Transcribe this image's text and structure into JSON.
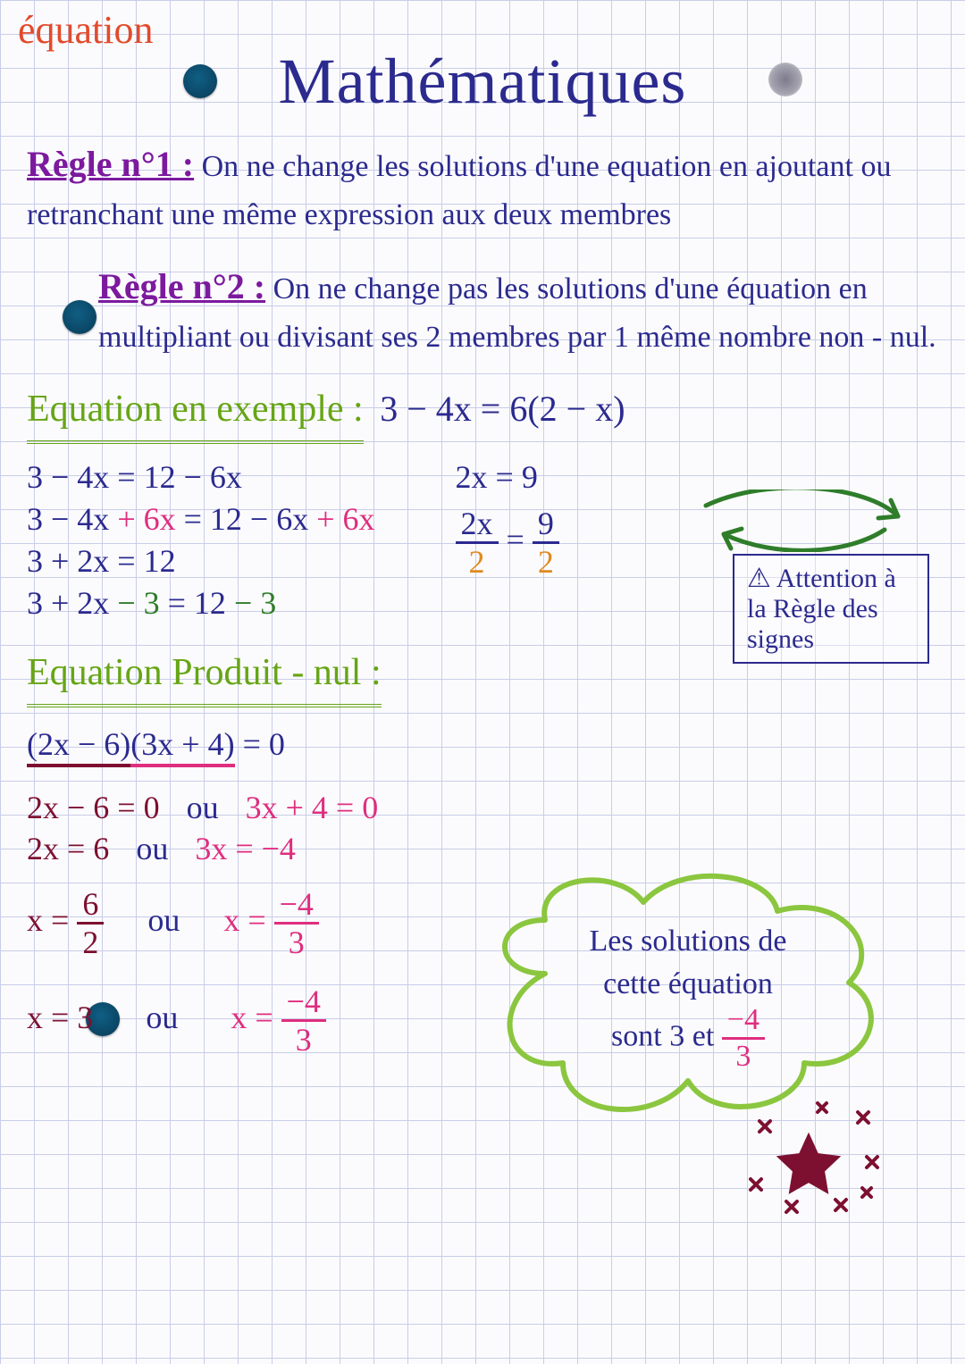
{
  "topic": "équation",
  "title": "Mathématiques",
  "rule1": {
    "head": "Règle n°1 :",
    "text": "On ne change les solutions d'une equation en ajoutant ou retranchant une même expression aux deux membres"
  },
  "rule2": {
    "head": "Règle n°2 :",
    "text": "On ne change pas les solutions d'une équation en multipliant ou divisant ses 2 membres par 1 même nombre non - nul."
  },
  "example": {
    "head": "Equation en exemple :",
    "eq": "3 − 4x = 6(2 − x)",
    "lines_left": [
      {
        "t": "3 − 4x = 12 − 6x",
        "extras": []
      },
      {
        "t": "3 − 4x",
        "extras": [
          {
            "t": " + 6x ",
            "c": "c-pink"
          },
          {
            "t": "= 12 − 6x",
            "c": "c-blue"
          },
          {
            "t": " + 6x",
            "c": "c-pink"
          }
        ]
      },
      {
        "t": "3 + 2x = 12",
        "extras": []
      },
      {
        "t": "3 + 2x",
        "extras": [
          {
            "t": " − 3 ",
            "c": "c-green"
          },
          {
            "t": "= 12",
            "c": "c-blue"
          },
          {
            "t": " − 3",
            "c": "c-green"
          }
        ]
      }
    ],
    "right_top": "2x = 9",
    "frac": {
      "ln": "2x",
      "ld": "2",
      "rn": "9",
      "rd": "2",
      "topcolor": "c-blue",
      "botcolor": "c-orange"
    }
  },
  "attention": "⚠ Attention à la Règle des signes",
  "product": {
    "head": "Equation Produit - nul :",
    "eq_l": "(2x − 6)",
    "eq_r": "(3x + 4)",
    "eq_end": " = 0",
    "rows": [
      {
        "l": "2x − 6 = 0",
        "m": "ou",
        "r": "3x + 4 = 0"
      },
      {
        "l": "2x = 6",
        "m": "ou",
        "r": "3x = −4"
      }
    ],
    "fracrow": {
      "l": {
        "pre": "x = ",
        "n": "6",
        "d": "2"
      },
      "m": "ou",
      "r": {
        "pre": "x = ",
        "n": "−4",
        "d": "3"
      }
    },
    "finalrow": {
      "l": "x = 3",
      "m": "ou",
      "r": {
        "pre": "x = ",
        "n": "−4",
        "d": "3"
      }
    }
  },
  "cloud": {
    "line1": "Les solutions de",
    "line2": "cette équation",
    "line3_pre": "sont 3 et ",
    "frac": {
      "n": "−4",
      "d": "3"
    }
  },
  "colors": {
    "grid": "#c9cde8",
    "ink": "#2b2a8e",
    "topic": "#e24b2b",
    "rule": "#7c1a9e",
    "green": "#66a515",
    "pink": "#df2e7f",
    "darkgreen": "#2f7d2a",
    "orange": "#e08a1e",
    "maroon": "#7d1030",
    "hole": "#0b4564",
    "cloud": "#8bc63f"
  }
}
